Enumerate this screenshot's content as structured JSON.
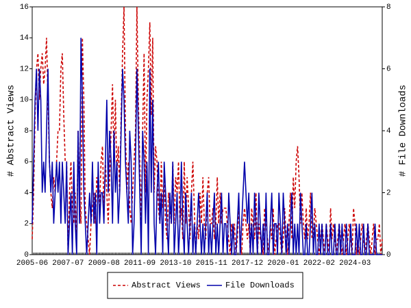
{
  "chart_data": {
    "type": "line",
    "y_label": "# Abstract Views",
    "y2_label": "# File Downloads",
    "categories": [
      "2005-06",
      null,
      null,
      null,
      null,
      null,
      null,
      null,
      null,
      null,
      null,
      null,
      null,
      null,
      null,
      null,
      null,
      null,
      null,
      null,
      null,
      null,
      null,
      null,
      null,
      "2007-07",
      null,
      null,
      null,
      null,
      null,
      null,
      null,
      null,
      null,
      null,
      null,
      null,
      null,
      null,
      null,
      null,
      null,
      null,
      null,
      null,
      null,
      null,
      null,
      null,
      "2009-08",
      null,
      null,
      null,
      null,
      null,
      null,
      null,
      null,
      null,
      null,
      null,
      null,
      null,
      null,
      null,
      null,
      null,
      null,
      null,
      null,
      null,
      null,
      null,
      null,
      "2011-09",
      null,
      null,
      null,
      null,
      null,
      null,
      null,
      null,
      null,
      null,
      null,
      null,
      null,
      null,
      null,
      null,
      null,
      null,
      null,
      null,
      null,
      null,
      null,
      null,
      "2013-10",
      null,
      null,
      null,
      null,
      null,
      null,
      null,
      null,
      null,
      null,
      null,
      null,
      null,
      null,
      null,
      null,
      null,
      null,
      null,
      null,
      null,
      null,
      null,
      null,
      "2015-11",
      null,
      null,
      null,
      null,
      null,
      null,
      null,
      null,
      null,
      null,
      null,
      null,
      null,
      null,
      null,
      null,
      null,
      null,
      null,
      null,
      null,
      null,
      null,
      null,
      "2017-12",
      null,
      null,
      null,
      null,
      null,
      null,
      null,
      null,
      null,
      null,
      null,
      null,
      null,
      null,
      null,
      null,
      null,
      null,
      null,
      null,
      null,
      null,
      null,
      null,
      "2020-01",
      null,
      null,
      null,
      null,
      null,
      null,
      null,
      null,
      null,
      null,
      null,
      null,
      null,
      null,
      null,
      null,
      null,
      null,
      null,
      null,
      null,
      null,
      null,
      null,
      "2022-02",
      null,
      null,
      null,
      null,
      null,
      null,
      null,
      null,
      null,
      null,
      null,
      null,
      null,
      null,
      null,
      null,
      null,
      null,
      null,
      null,
      null,
      null,
      null,
      null,
      "2024-03",
      null,
      null,
      null,
      null,
      null,
      null,
      null,
      null,
      null,
      null,
      null,
      null,
      null,
      null,
      null,
      null,
      null,
      null,
      null
    ],
    "series": [
      {
        "name": "Abstract Views",
        "color": "#cc0000",
        "dashed": true,
        "axis": "y",
        "values": [
          1,
          4,
          9,
          12,
          13,
          10,
          12,
          13,
          11,
          12,
          14,
          10,
          6,
          4,
          3,
          5,
          4,
          6,
          8,
          8,
          12,
          13,
          9,
          6,
          6,
          0,
          4,
          6,
          3,
          2,
          4,
          1,
          8,
          4,
          2,
          14,
          10,
          3,
          2,
          1,
          0,
          2,
          3,
          4,
          2,
          5,
          4,
          3,
          6,
          7,
          3,
          6,
          4,
          2,
          5,
          8,
          11,
          6,
          10,
          5,
          7,
          4,
          9,
          13,
          16,
          8,
          4,
          6,
          3,
          2,
          4,
          6,
          8,
          16,
          10,
          6,
          2,
          8,
          13,
          4,
          10,
          12,
          15,
          9,
          14,
          4,
          7,
          6,
          3,
          2,
          6,
          3,
          5,
          2,
          1,
          4,
          3,
          2,
          6,
          2,
          5,
          4,
          6,
          2,
          3,
          1,
          6,
          2,
          5,
          3,
          1,
          4,
          6,
          3,
          0,
          2,
          1,
          4,
          2,
          5,
          2,
          1,
          4,
          5,
          2,
          2,
          3,
          1,
          2,
          5,
          2,
          4,
          2,
          3,
          3,
          3,
          2,
          1,
          0,
          2,
          1,
          2,
          0,
          1,
          3,
          1,
          0,
          2,
          3,
          2,
          1,
          2,
          0,
          3,
          2,
          1,
          4,
          0,
          2,
          1,
          1,
          0,
          3,
          2,
          1,
          0,
          2,
          1,
          3,
          0,
          1,
          2,
          2,
          1,
          0,
          1,
          3,
          1,
          0,
          2,
          4,
          1,
          5,
          3,
          6,
          7,
          5,
          2,
          4,
          2,
          1,
          3,
          1,
          2,
          4,
          1,
          1,
          3,
          2,
          1,
          0,
          1,
          2,
          1,
          0,
          2,
          1,
          0,
          3,
          1,
          2,
          1,
          0,
          1,
          2,
          1,
          0,
          1,
          2,
          0,
          1,
          2,
          1,
          0,
          3,
          2,
          0,
          1,
          0,
          1,
          2,
          1,
          0,
          1,
          2,
          1,
          0,
          1,
          2,
          0,
          1,
          1,
          2,
          0,
          1
        ]
      },
      {
        "name": "File Downloads",
        "color": "#0000aa",
        "dashed": false,
        "axis": "y2",
        "values": [
          1,
          3,
          5,
          6,
          4,
          6,
          5,
          2,
          3,
          2,
          4,
          6,
          3,
          2,
          3,
          1,
          2,
          3,
          2,
          3,
          1,
          3,
          2,
          1,
          3,
          0,
          1,
          2,
          0,
          3,
          1,
          0,
          4,
          1,
          7,
          5,
          2,
          1,
          0,
          1,
          2,
          1,
          3,
          1,
          2,
          0,
          3,
          1,
          2,
          2,
          1,
          3,
          5,
          2,
          4,
          3,
          1,
          4,
          2,
          3,
          1,
          2,
          4,
          6,
          5,
          3,
          2,
          1,
          4,
          3,
          0,
          1,
          3,
          6,
          4,
          2,
          0,
          4,
          3,
          1,
          3,
          0,
          6,
          2,
          5,
          1,
          0,
          2,
          3,
          1,
          2,
          0,
          3,
          2,
          1,
          0,
          2,
          1,
          3,
          0,
          1,
          2,
          0,
          1,
          3,
          1,
          0,
          2,
          1,
          0,
          1,
          2,
          0,
          1,
          0,
          1,
          2,
          1,
          0,
          1,
          0,
          1,
          2,
          0,
          1,
          0,
          1,
          2,
          0,
          1,
          0,
          1,
          2,
          0,
          1,
          1,
          0,
          2,
          1,
          0,
          1,
          0,
          0,
          1,
          2,
          0,
          1,
          2,
          3,
          2,
          1,
          2,
          0,
          1,
          0,
          2,
          1,
          0,
          2,
          1,
          0,
          1,
          0,
          2,
          0,
          0,
          1,
          2,
          0,
          1,
          1,
          0,
          2,
          1,
          0,
          2,
          1,
          0,
          1,
          0,
          1,
          2,
          0,
          1,
          0,
          1,
          0,
          2,
          1,
          0,
          0,
          1,
          0,
          0,
          1,
          2,
          0,
          1,
          0,
          0,
          1,
          0,
          1,
          0,
          0,
          1,
          0,
          0,
          1,
          0,
          0,
          1,
          0,
          0,
          1,
          0,
          1,
          0,
          0,
          1,
          0,
          0,
          1,
          0,
          0,
          0,
          1,
          0,
          1,
          0,
          0,
          1,
          0,
          0,
          1,
          0,
          0,
          0,
          0,
          1,
          0,
          0,
          0,
          0,
          0
        ]
      }
    ],
    "ylim": [
      0,
      16
    ],
    "yticks": [
      0,
      2,
      4,
      6,
      8,
      10,
      12,
      14,
      16
    ],
    "y2lim": [
      0,
      8
    ],
    "y2ticks": [
      0,
      2,
      4,
      6,
      8
    ],
    "legend": "bottom"
  }
}
